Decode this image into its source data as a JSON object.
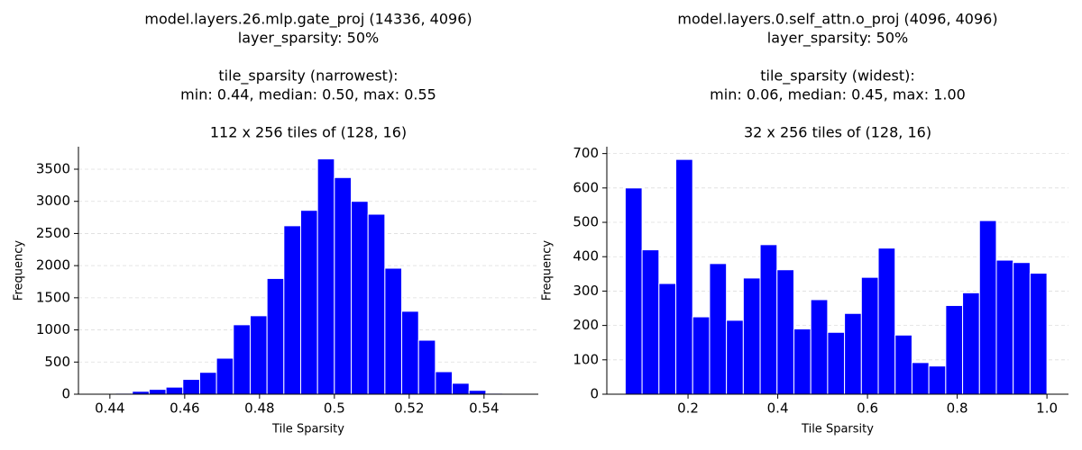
{
  "chart_data": [
    {
      "type": "histogram",
      "title": [
        [
          "model.layers.26.mlp.gate_proj (14336, 4096)",
          "layer_sparsity: 50%"
        ],
        [
          "tile_sparsity (narrowest):",
          "min: 0.44, median: 0.50, max: 0.55"
        ],
        [
          "112 x 256 tiles of (128, 16)"
        ]
      ],
      "xlabel": "Tile Sparsity",
      "ylabel": "Frequency",
      "bins": [
        0.4415,
        0.446,
        0.4505,
        0.455,
        0.4595,
        0.464,
        0.4685,
        0.473,
        0.4775,
        0.482,
        0.4865,
        0.491,
        0.4955,
        0.5,
        0.5045,
        0.509,
        0.5135,
        0.518,
        0.5225,
        0.527,
        0.5315,
        0.536,
        0.5405,
        0.545
      ],
      "values": [
        15,
        45,
        75,
        110,
        230,
        340,
        560,
        1080,
        1220,
        1800,
        2620,
        2860,
        3660,
        3370,
        3000,
        2800,
        1960,
        1290,
        840,
        350,
        170,
        60,
        15
      ],
      "color": "#0000ff",
      "xlim": [
        0.4316,
        0.5545
      ],
      "xticks": [
        0.44,
        0.46,
        0.48,
        0.5,
        0.52,
        0.54
      ],
      "ylim": [
        0,
        3850
      ],
      "yticks": [
        0,
        500,
        1000,
        1500,
        2000,
        2500,
        3000,
        3500
      ],
      "grid": true
    },
    {
      "type": "histogram",
      "title": [
        [
          "model.layers.0.self_attn.o_proj (4096, 4096)",
          "layer_sparsity: 50%"
        ],
        [
          "tile_sparsity (widest):",
          "min: 0.06, median: 0.45, max: 1.00"
        ],
        [
          "32 x 256 tiles of (128, 16)"
        ]
      ],
      "xlabel": "Tile Sparsity",
      "ylabel": "Frequency",
      "bins": [
        0.06,
        0.0976,
        0.1352,
        0.1728,
        0.2104,
        0.248,
        0.2856,
        0.3232,
        0.3608,
        0.3984,
        0.436,
        0.4736,
        0.5112,
        0.5488,
        0.5864,
        0.624,
        0.6616,
        0.6992,
        0.7368,
        0.7744,
        0.812,
        0.8496,
        0.8872,
        0.9248,
        0.9624,
        1.0
      ],
      "values": [
        600,
        420,
        322,
        683,
        225,
        380,
        215,
        338,
        435,
        362,
        190,
        275,
        180,
        235,
        340,
        425,
        172,
        92,
        82,
        258,
        295,
        505,
        390,
        383,
        352
      ],
      "color": "#0000ff",
      "xlim": [
        0.019,
        1.048
      ],
      "xticks": [
        0.2,
        0.4,
        0.6,
        0.8,
        {
          "value": 1.0,
          "label": "1.0"
        }
      ],
      "ylim": [
        0,
        720
      ],
      "yticks": [
        0,
        100,
        200,
        300,
        400,
        500,
        600,
        700
      ],
      "grid": true
    }
  ]
}
